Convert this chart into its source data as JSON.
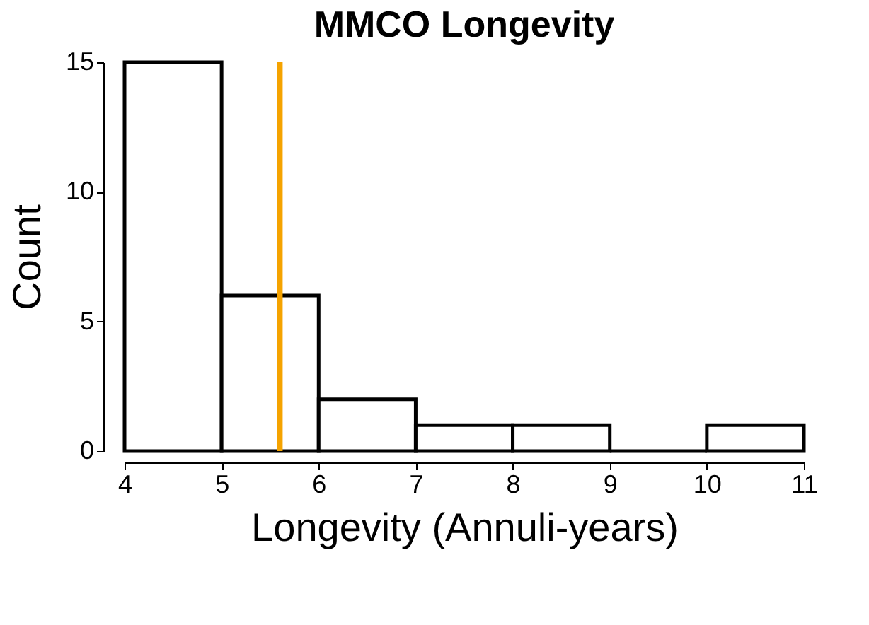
{
  "chart_data": {
    "type": "histogram",
    "title": "MMCO Longevity",
    "xlabel": "Longevity (Annuli-years)",
    "ylabel": "Count",
    "bins": [
      4,
      5,
      6,
      7,
      8,
      9,
      10,
      11
    ],
    "values": [
      15,
      6,
      2,
      1,
      1,
      0,
      1
    ],
    "color": "#000000",
    "xlim": [
      4,
      11
    ],
    "xticks": [
      4,
      5,
      6,
      7,
      8,
      9,
      10,
      11
    ],
    "ylim": [
      0,
      15
    ],
    "yticks": [
      0,
      5,
      10,
      15
    ],
    "grid": false,
    "ref_lines": [
      {
        "axis": "x",
        "value": 5.6,
        "color": "#f5a300"
      }
    ]
  }
}
